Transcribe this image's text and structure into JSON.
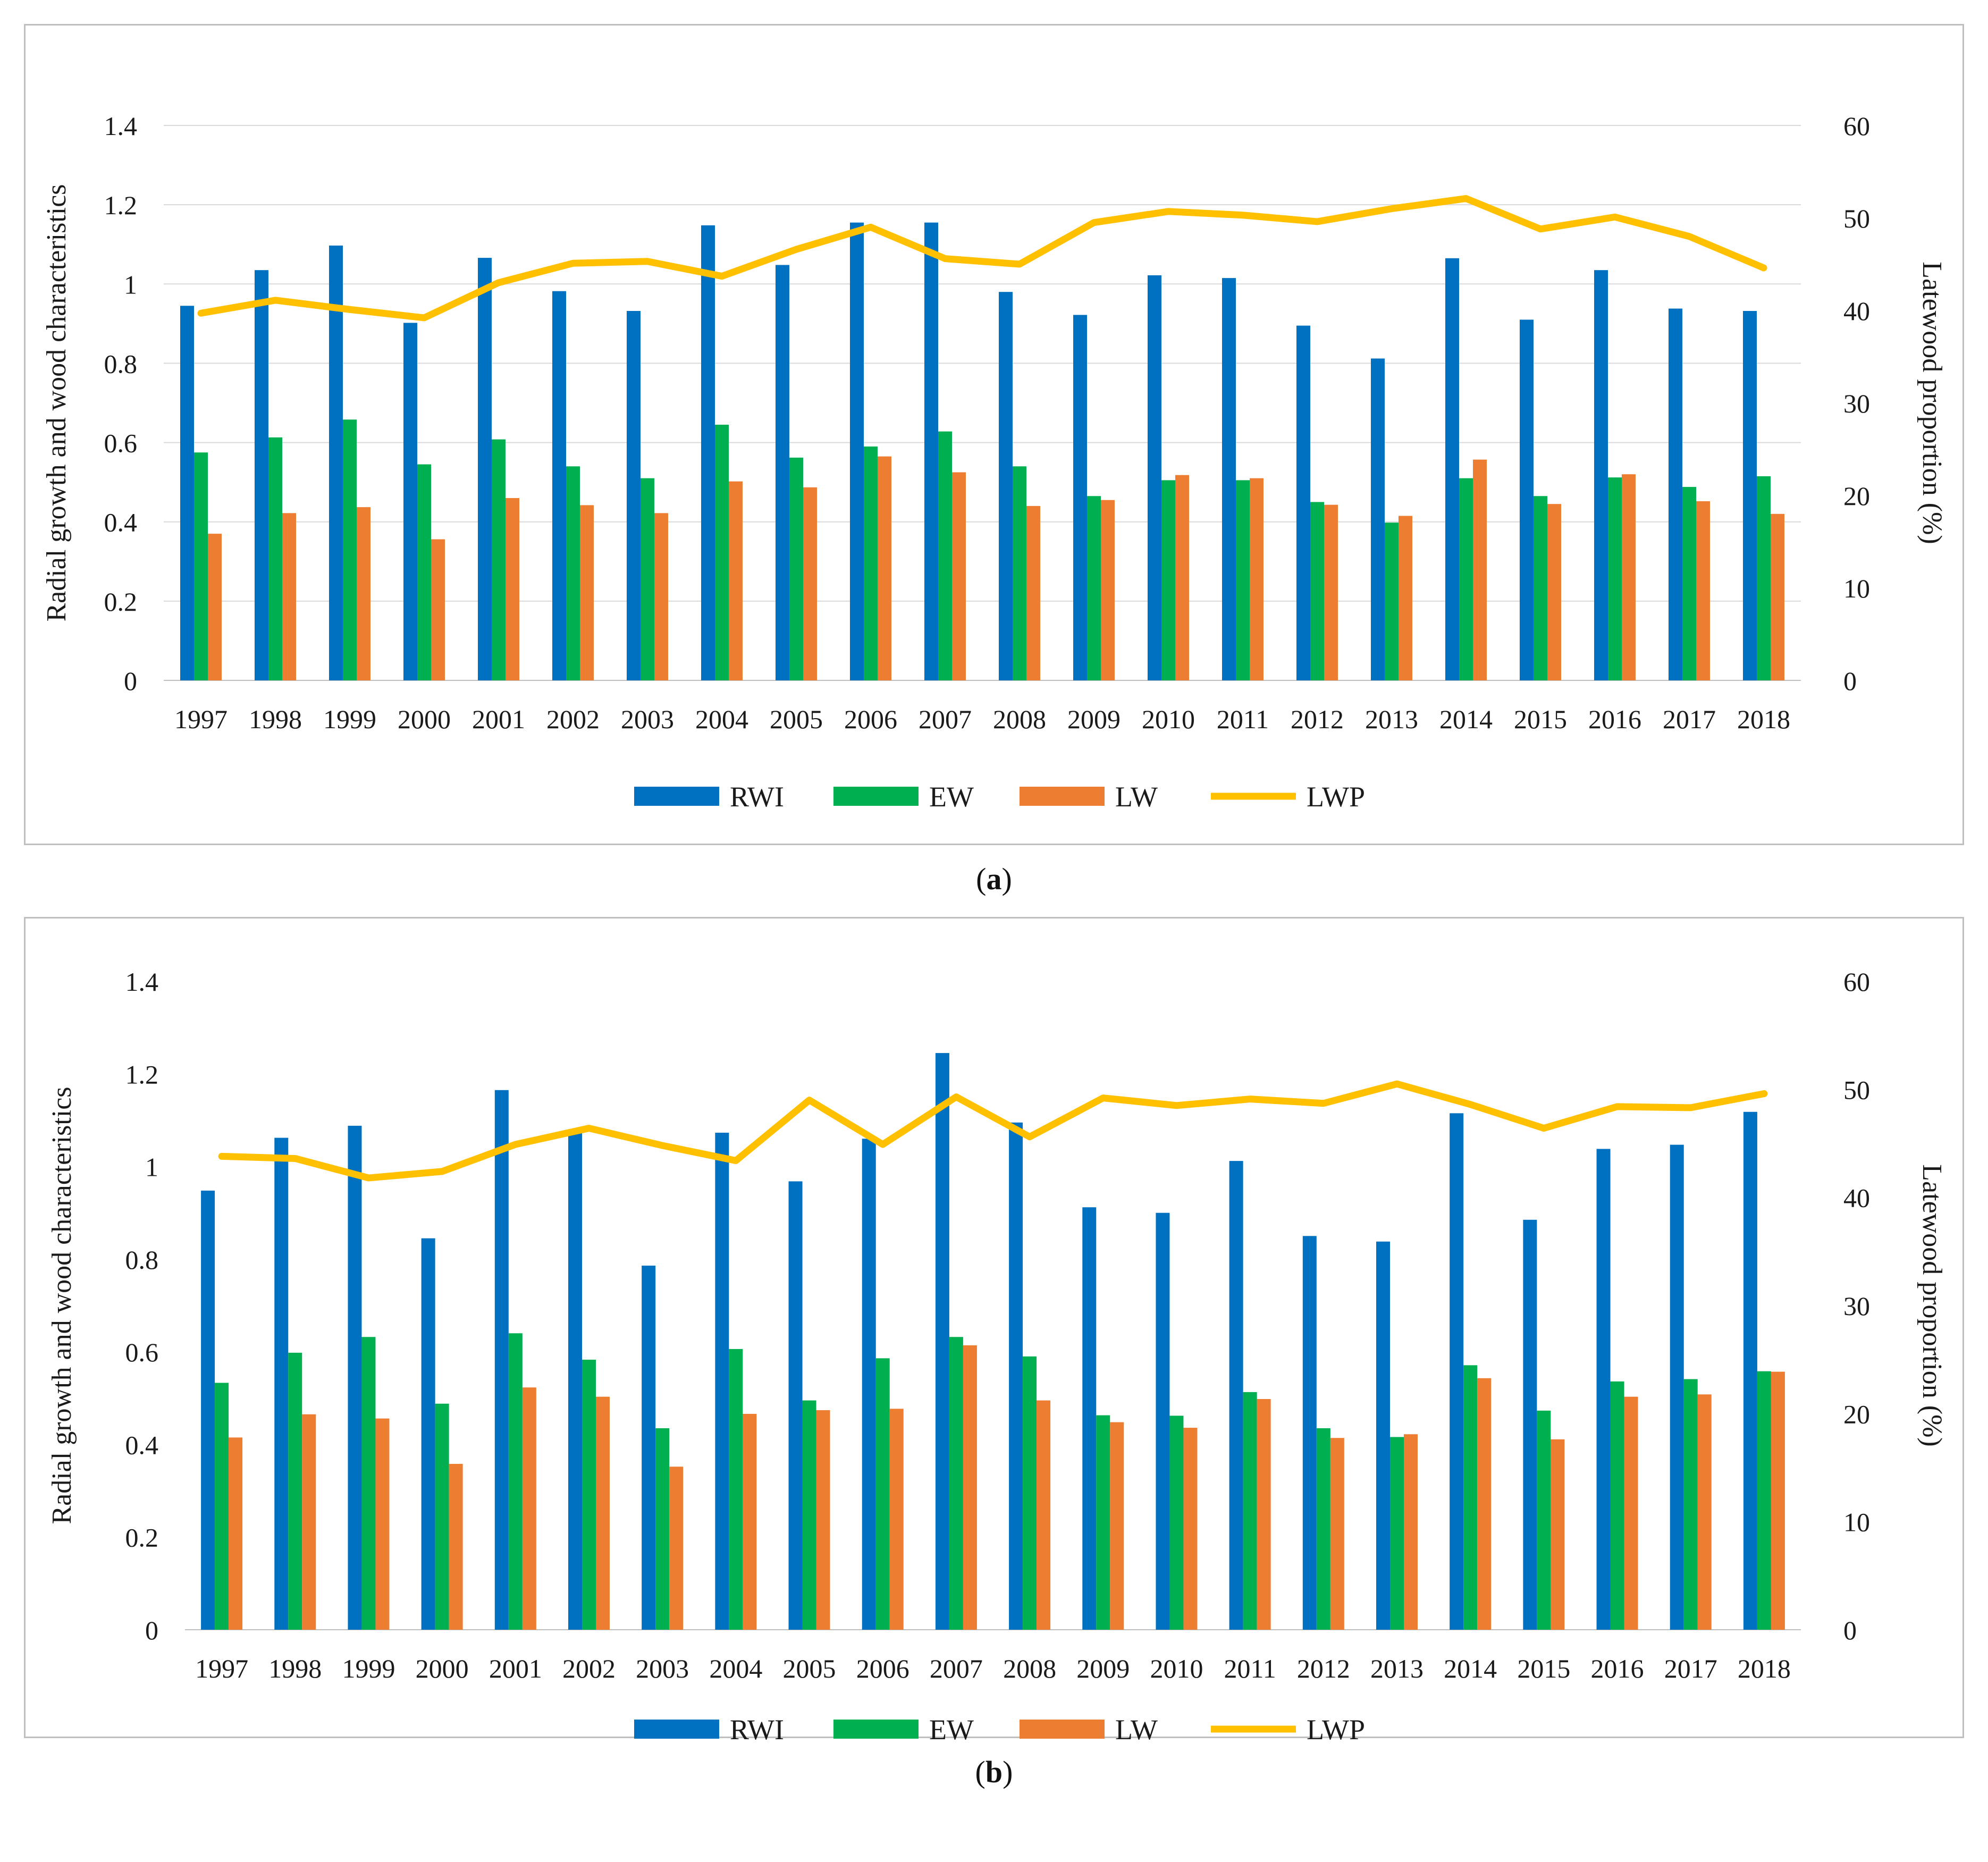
{
  "chart_data": [
    {
      "type": "bar",
      "panel_label": "a",
      "title": "",
      "categories": [
        "1997",
        "1998",
        "1999",
        "2000",
        "2001",
        "2002",
        "2003",
        "2004",
        "2005",
        "2006",
        "2007",
        "2008",
        "2009",
        "2010",
        "2011",
        "2012",
        "2013",
        "2014",
        "2015",
        "2016",
        "2017",
        "2018"
      ],
      "ylabel": "Radial growth and wood characteristics",
      "ylabel_right": "Latewood proportion (%)",
      "ylim": [
        0,
        1.4
      ],
      "ylim_right": [
        0,
        60
      ],
      "yticks": [
        "0",
        "0.2",
        "0.4",
        "0.6",
        "0.8",
        "1",
        "1.2",
        "1.4"
      ],
      "yticks_right": [
        "0",
        "10",
        "20",
        "30",
        "40",
        "50",
        "60"
      ],
      "grid": true,
      "legend_position": "bottom",
      "series": [
        {
          "name": "RWI",
          "kind": "bar",
          "axis": "left",
          "color": "#0070C0",
          "values": [
            0.945,
            1.035,
            1.097,
            0.902,
            1.066,
            0.982,
            0.932,
            1.148,
            1.048,
            1.155,
            1.155,
            0.98,
            0.922,
            1.022,
            1.015,
            0.895,
            0.812,
            1.065,
            0.91,
            1.035,
            0.938,
            0.932
          ]
        },
        {
          "name": "EW",
          "kind": "bar",
          "axis": "left",
          "color": "#00B050",
          "values": [
            0.575,
            0.613,
            0.658,
            0.545,
            0.608,
            0.54,
            0.51,
            0.645,
            0.562,
            0.59,
            0.628,
            0.54,
            0.465,
            0.505,
            0.505,
            0.45,
            0.398,
            0.51,
            0.465,
            0.512,
            0.488,
            0.515
          ]
        },
        {
          "name": "LW",
          "kind": "bar",
          "axis": "left",
          "color": "#ED7D31",
          "values": [
            0.37,
            0.422,
            0.437,
            0.356,
            0.46,
            0.442,
            0.422,
            0.502,
            0.487,
            0.565,
            0.525,
            0.44,
            0.455,
            0.518,
            0.51,
            0.443,
            0.415,
            0.557,
            0.445,
            0.52,
            0.452,
            0.42
          ]
        },
        {
          "name": "LWP",
          "kind": "line",
          "axis": "right",
          "color": "#FFC000",
          "values": [
            39.7,
            41.1,
            40.1,
            39.2,
            43.0,
            45.1,
            45.3,
            43.7,
            46.6,
            49.0,
            45.6,
            45.0,
            49.5,
            50.7,
            50.3,
            49.6,
            51.0,
            52.1,
            48.8,
            50.1,
            48.0,
            44.6
          ]
        }
      ]
    },
    {
      "type": "bar",
      "panel_label": "b",
      "title": "",
      "categories": [
        "1997",
        "1998",
        "1999",
        "2000",
        "2001",
        "2002",
        "2003",
        "2004",
        "2005",
        "2006",
        "2007",
        "2008",
        "2009",
        "2010",
        "2011",
        "2012",
        "2013",
        "2014",
        "2015",
        "2016",
        "2017",
        "2018"
      ],
      "ylabel": "Radial growth and wood characteristics",
      "ylabel_right": "Latewood proportion (%)",
      "ylim": [
        0,
        1.4
      ],
      "ylim_right": [
        0,
        60
      ],
      "yticks": [
        "0",
        "0.2",
        "0.4",
        "0.6",
        "0.8",
        "1",
        "1.2",
        "1.4"
      ],
      "yticks_right": [
        "0",
        "10",
        "20",
        "30",
        "40",
        "50",
        "60"
      ],
      "grid": false,
      "legend_position": "bottom",
      "series": [
        {
          "name": "RWI",
          "kind": "bar",
          "axis": "left",
          "color": "#0070C0",
          "values": [
            0.948,
            1.062,
            1.088,
            0.845,
            1.165,
            1.078,
            0.786,
            1.073,
            0.968,
            1.06,
            1.245,
            1.095,
            0.912,
            0.9,
            1.012,
            0.85,
            0.838,
            1.115,
            0.885,
            1.038,
            1.047,
            1.118
          ]
        },
        {
          "name": "EW",
          "kind": "bar",
          "axis": "left",
          "color": "#00B050",
          "values": [
            0.533,
            0.598,
            0.632,
            0.488,
            0.64,
            0.583,
            0.435,
            0.606,
            0.495,
            0.586,
            0.632,
            0.59,
            0.463,
            0.462,
            0.513,
            0.435,
            0.416,
            0.571,
            0.473,
            0.536,
            0.541,
            0.558
          ]
        },
        {
          "name": "LW",
          "kind": "bar",
          "axis": "left",
          "color": "#ED7D31",
          "values": [
            0.415,
            0.465,
            0.456,
            0.358,
            0.523,
            0.503,
            0.352,
            0.466,
            0.474,
            0.477,
            0.614,
            0.495,
            0.448,
            0.436,
            0.498,
            0.414,
            0.422,
            0.543,
            0.411,
            0.503,
            0.508,
            0.557
          ]
        },
        {
          "name": "LWP",
          "kind": "line",
          "axis": "right",
          "color": "#FFC000",
          "values": [
            43.8,
            43.6,
            41.8,
            42.4,
            44.9,
            46.4,
            44.8,
            43.4,
            49.0,
            44.9,
            49.3,
            45.6,
            49.2,
            48.5,
            49.1,
            48.7,
            50.5,
            48.6,
            46.4,
            48.4,
            48.3,
            49.6
          ]
        }
      ]
    }
  ],
  "captions": [
    {
      "open": "(",
      "letter": "a",
      "close": ")"
    },
    {
      "open": "(",
      "letter": "b",
      "close": ")"
    }
  ]
}
